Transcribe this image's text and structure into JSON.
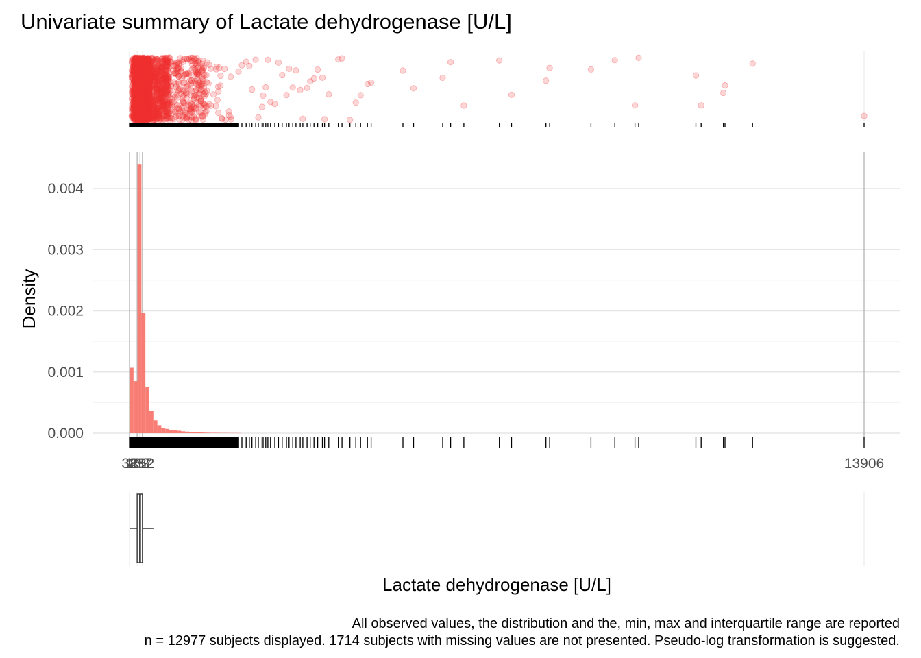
{
  "chart_data": {
    "type": "histogram",
    "title": "Univariate summary of Lactate dehydrogenase [U/L]",
    "xlabel": "Lactate dehydrogenase [U/L]",
    "ylabel": "Density",
    "xlim": [
      38,
      13906
    ],
    "ylim": [
      0,
      0.0046
    ],
    "y_ticks": [
      "0.000",
      "0.001",
      "0.002",
      "0.003",
      "0.004"
    ],
    "y_tick_values": [
      0,
      0.001,
      0.002,
      0.003,
      0.004
    ],
    "x_ticks": [
      "38",
      "182",
      "237",
      "282",
      "13906"
    ],
    "x_tick_values": [
      38,
      182,
      237,
      282,
      13906
    ],
    "reference_lines": [
      38,
      182,
      237,
      282,
      13906
    ],
    "bin_width": 75,
    "bin_starts": [
      38,
      113,
      188,
      263,
      338,
      413,
      488,
      563,
      638,
      713,
      788,
      863,
      938,
      1013,
      1088,
      1163,
      1238,
      1313,
      1388,
      1463,
      1538,
      1613,
      1688,
      1763,
      1838,
      1913,
      1988,
      2063
    ],
    "density": [
      0.00107,
      0.00085,
      0.00439,
      0.00197,
      0.00076,
      0.00037,
      0.00021,
      0.00013,
      9e-05,
      7e-05,
      5e-05,
      4.5e-05,
      4e-05,
      3e-05,
      2.5e-05,
      2e-05,
      1.5e-05,
      1.2e-05,
      1e-05,
      8e-06,
      6e-06,
      6e-06,
      5e-06,
      4e-06,
      4e-06,
      3e-06,
      3e-06,
      2e-06
    ],
    "boxplot": {
      "min": 38,
      "q1": 182,
      "median": 237,
      "q3": 282,
      "max": 13906
    },
    "outlier_values": [
      2095,
      2160,
      2240,
      2300,
      2350,
      2420,
      2470,
      2540,
      2560,
      2610,
      2650,
      2700,
      2780,
      2850,
      2920,
      3000,
      3050,
      3120,
      3180,
      3260,
      3310,
      3390,
      3450,
      3520,
      3590,
      3680,
      3720,
      3800,
      3980,
      4050,
      4200,
      4310,
      4400,
      4530,
      4600,
      5200,
      5400,
      5950,
      6100,
      6350,
      7020,
      7250,
      7900,
      7970,
      8750,
      9200,
      9580,
      9650,
      10730,
      10830,
      11250,
      11280,
      11800,
      13906
    ],
    "colors": {
      "fill": "#F8766D",
      "points": "#F03030",
      "grid": "#e6e6e6",
      "ref_line": "#b3b3b3"
    },
    "grid": true,
    "legend": "none"
  },
  "caption": {
    "line1": "All observed values, the distribution and the, min, max and interquartile range are reported",
    "line2": "n = 12977 subjects displayed. 1714 subjects with missing values are not presented. Pseudo-log transformation is suggested."
  }
}
